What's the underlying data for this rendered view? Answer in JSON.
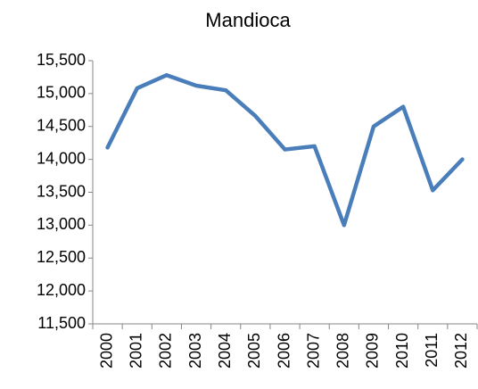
{
  "chart_data": {
    "type": "line",
    "title": "Mandioca",
    "categories": [
      "2000",
      "2001",
      "2002",
      "2003",
      "2004",
      "2005",
      "2006",
      "2007",
      "2008",
      "2009",
      "2010",
      "2011",
      "2012"
    ],
    "values": [
      14180,
      15080,
      15280,
      15120,
      15050,
      14660,
      14150,
      14200,
      13000,
      14500,
      14800,
      13530,
      14000
    ],
    "color": "#4a7ebb",
    "ylim": [
      11500,
      15500
    ],
    "yticks": [
      {
        "value": 11500,
        "label": "11,500"
      },
      {
        "value": 12000,
        "label": "12,000"
      },
      {
        "value": 12500,
        "label": "12,500"
      },
      {
        "value": 13000,
        "label": "13,000"
      },
      {
        "value": 13500,
        "label": "13,500"
      },
      {
        "value": 14000,
        "label": "14,000"
      },
      {
        "value": 14500,
        "label": "14,500"
      },
      {
        "value": 15000,
        "label": "15,000"
      },
      {
        "value": 15500,
        "label": "15,500"
      }
    ],
    "grid": false
  }
}
